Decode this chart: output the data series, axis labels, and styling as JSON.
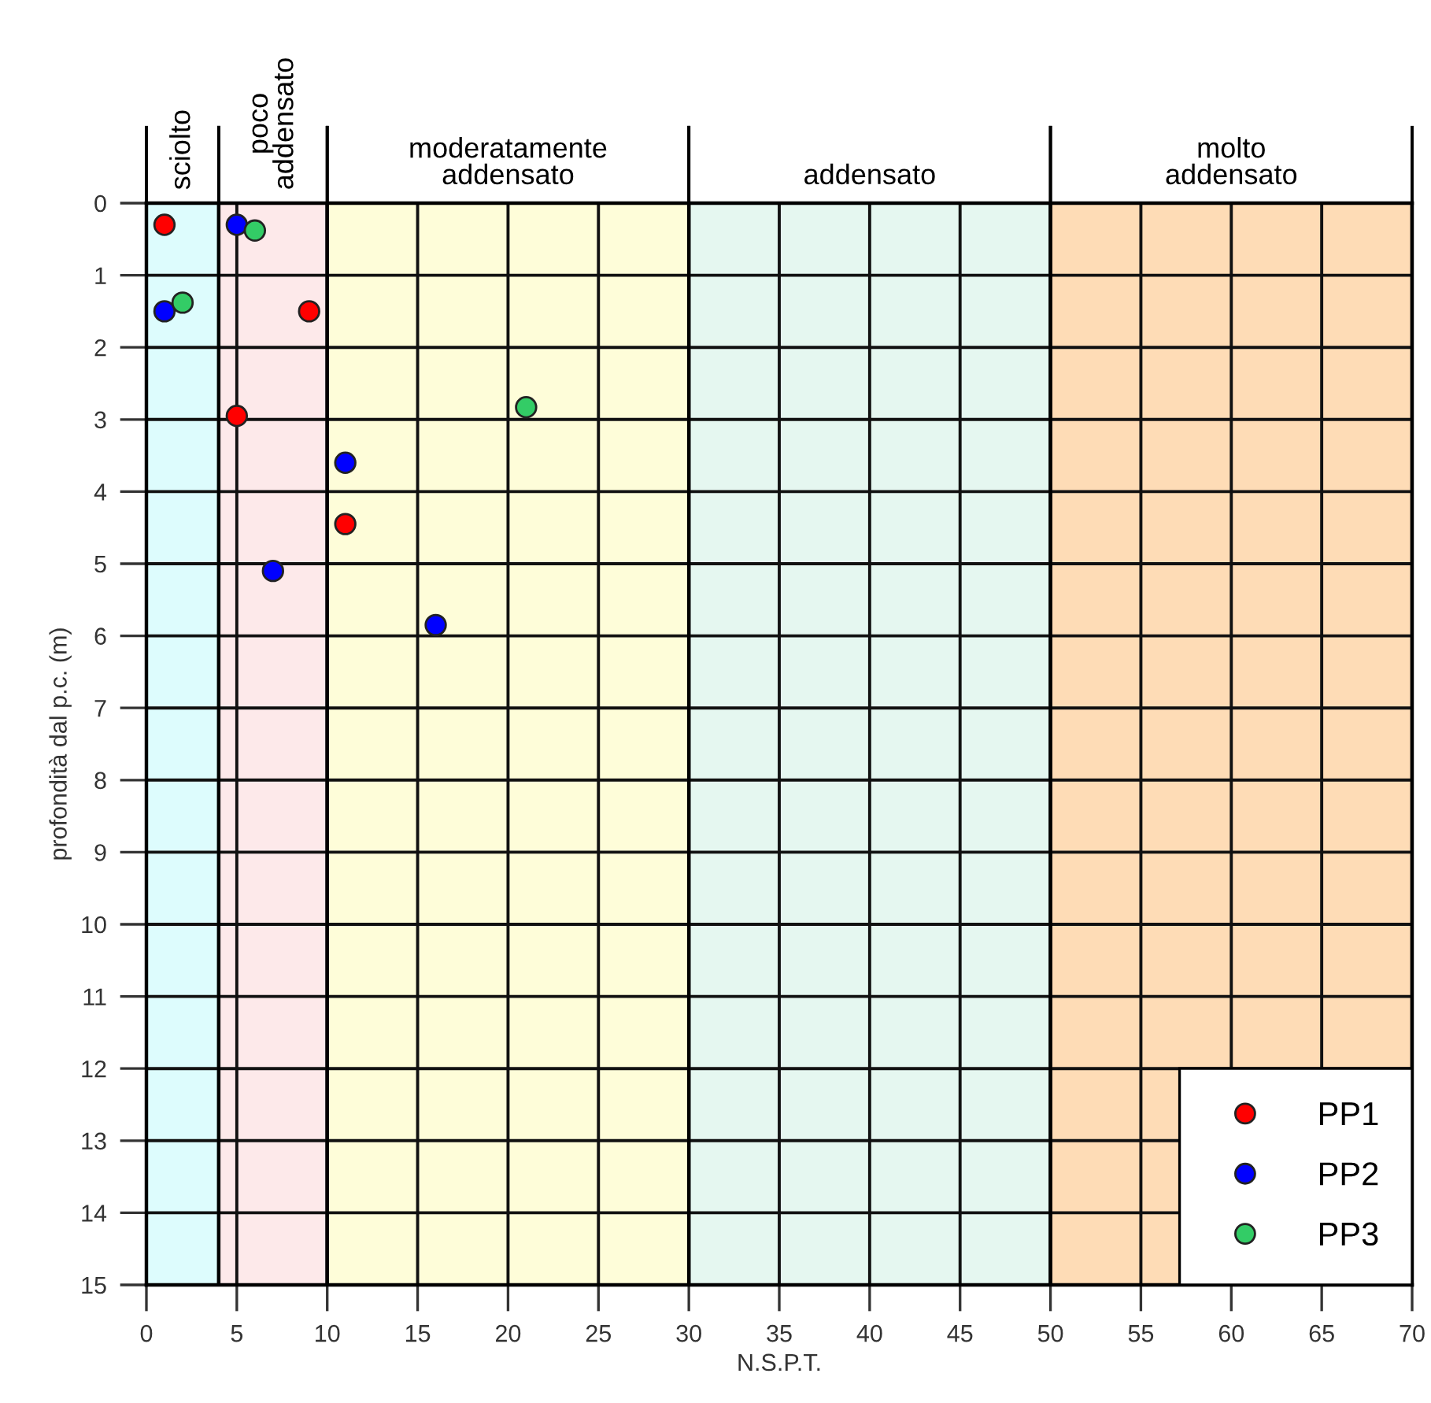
{
  "chart_data": {
    "type": "scatter",
    "xlabel": "N.S.P.T.",
    "ylabel": "profondità dal p.c. (m)",
    "xlim": [
      0,
      70
    ],
    "xticks": [
      0,
      5,
      10,
      15,
      20,
      25,
      30,
      35,
      40,
      45,
      50,
      55,
      60,
      65,
      70
    ],
    "ylim": [
      15,
      0
    ],
    "yticks": [
      0,
      1,
      2,
      3,
      4,
      5,
      6,
      7,
      8,
      9,
      10,
      11,
      12,
      13,
      14,
      15
    ],
    "grid": true,
    "legend": "bottom right",
    "marker": "circle",
    "bands": [
      {
        "axis": "x",
        "from": 0,
        "to": 4,
        "label": "sciolto",
        "color": "#ddfcfd"
      },
      {
        "axis": "x",
        "from": 4,
        "to": 10,
        "label": "poco\naddensato",
        "color": "#fde9ea"
      },
      {
        "axis": "x",
        "from": 10,
        "to": 30,
        "label": "moderatamente\naddensato",
        "color": "#fefdd9"
      },
      {
        "axis": "x",
        "from": 30,
        "to": 50,
        "label": "addensato",
        "color": "#e5f7f0"
      },
      {
        "axis": "x",
        "from": 50,
        "to": 70,
        "label": "molto\naddensato",
        "color": "#fedcb6"
      }
    ],
    "series": [
      {
        "name": "PP1",
        "color": "#ff0000",
        "x": [
          1,
          9,
          5,
          11
        ],
        "values": [
          0.3,
          1.5,
          2.95,
          4.45
        ]
      },
      {
        "name": "PP2",
        "color": "#0000ff",
        "x": [
          5,
          1,
          11,
          7,
          16
        ],
        "values": [
          0.3,
          1.5,
          3.6,
          5.1,
          5.85
        ]
      },
      {
        "name": "PP3",
        "color": "#33cc66",
        "x": [
          6,
          2,
          21
        ],
        "values": [
          0.38,
          1.38,
          2.83
        ]
      }
    ]
  }
}
